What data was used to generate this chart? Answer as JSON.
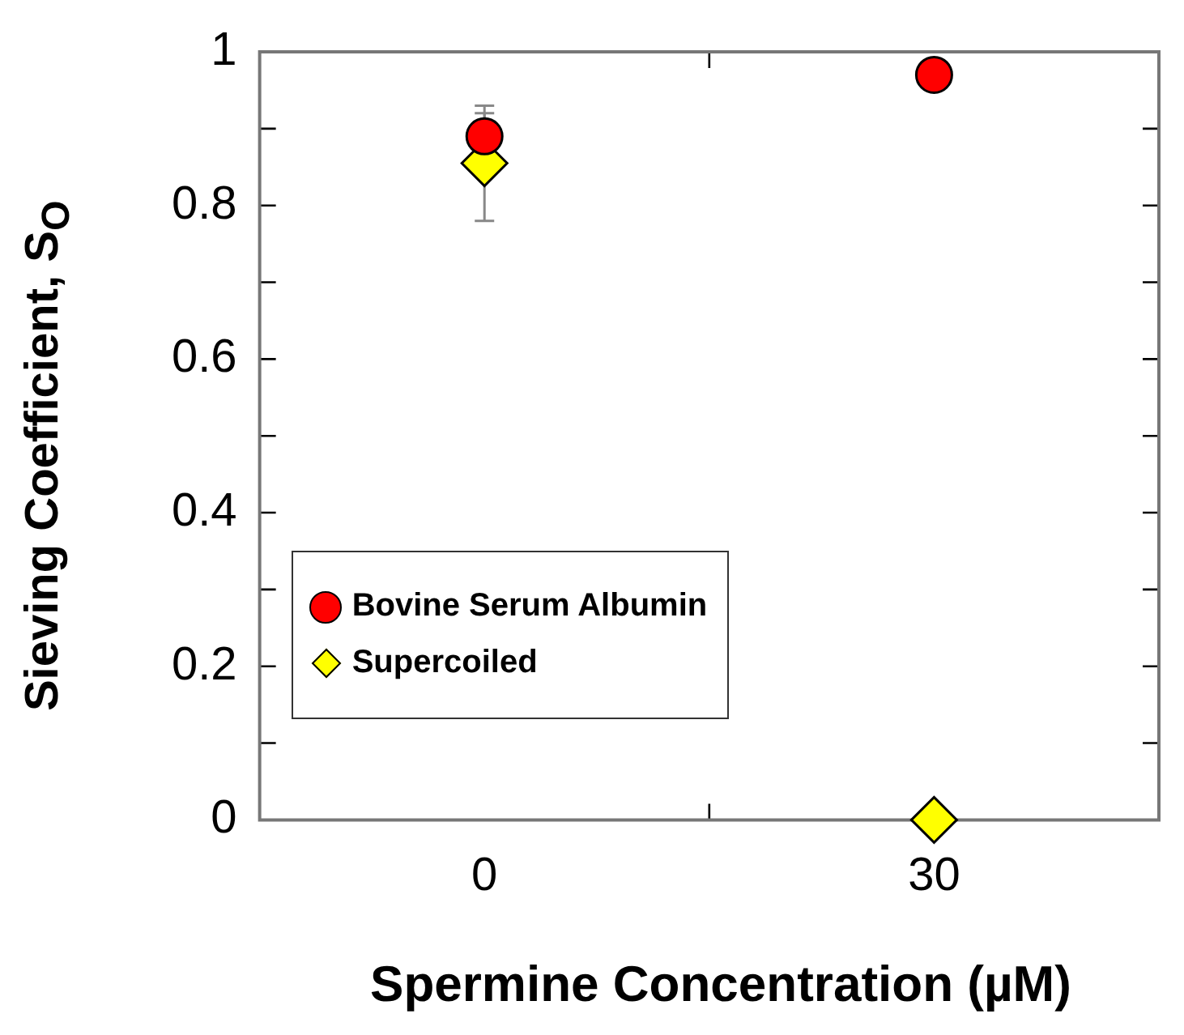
{
  "chart_data": {
    "type": "scatter",
    "xlabel": "Spermine Concentration (µM)",
    "ylabel": "Sieving Coefficient, S$_{O}$",
    "categories": [
      "0",
      "30"
    ],
    "series": [
      {
        "name": "Bovine Serum Albumin",
        "color": "#ff0000",
        "marker": "circle",
        "values": [
          0.89,
          0.97
        ],
        "errors": [
          [
            0.89,
            0.93
          ],
          null
        ]
      },
      {
        "name": "Supercoiled",
        "color": "#ffff00",
        "marker": "diamond",
        "values": [
          0.855,
          0
        ],
        "errors": [
          [
            0.78,
            0.92
          ],
          null
        ]
      }
    ],
    "ylim": [
      0,
      1
    ],
    "yticks": [
      0,
      {
        "value": 0.1,
        "label": null
      },
      0.2,
      {
        "value": 0.3,
        "label": null
      },
      0.4,
      {
        "value": 0.5,
        "label": null
      },
      0.6,
      {
        "value": 0.7,
        "label": null
      },
      0.8,
      {
        "value": 0.9,
        "label": null
      },
      1
    ],
    "legend": "bottom left",
    "grid": false
  }
}
